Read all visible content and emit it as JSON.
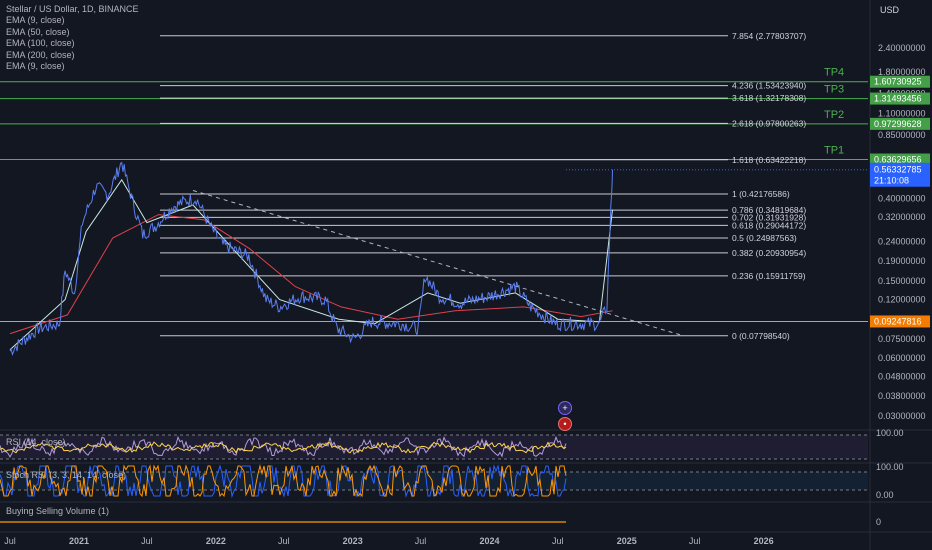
{
  "header": {
    "title": "Stellar / US Dollar, 1D, BINANCE",
    "indicators": [
      "EMA (9, close)",
      "EMA (50, close)",
      "EMA (100, close)",
      "EMA (200, close)",
      "EMA (9, close)"
    ]
  },
  "currency": "USD",
  "panes": {
    "rsi_label": "RSI (14, close)",
    "stoch_label": "Stoch RSI (3, 3, 14, 14, close)",
    "volume_label": "Buying Selling Volume (1)"
  },
  "colors": {
    "background": "#131722",
    "price_line": "#5b7ff0",
    "ema_fast": "#c9e8e0",
    "ema_slow": "#e0404a",
    "fib_line": "#e8eaf0",
    "tp_line": "#4caf50",
    "horizontal_support": "#ff9800",
    "current_price": "#2962ff"
  },
  "chart_data": {
    "type": "line",
    "title": "Stellar / US Dollar, 1D, BINANCE",
    "y_scale": "log",
    "ylim": [
      0.026,
      3.6
    ],
    "xlim": [
      "2020-07-01",
      "2026-09-15"
    ],
    "y_ticks": [
      "2.40000000",
      "1.80000000",
      "1.40000000",
      "1.10000000",
      "0.85000000",
      "0.40000000",
      "0.32000000",
      "0.24000000",
      "0.19000000",
      "0.15000000",
      "0.12000000",
      "0.07500000",
      "0.06000000",
      "0.04800000",
      "0.03800000",
      "0.03000000"
    ],
    "y_tick_values": [
      2.4,
      1.8,
      1.4,
      1.1,
      0.85,
      0.4,
      0.32,
      0.24,
      0.19,
      0.15,
      0.12,
      0.075,
      0.06,
      0.048,
      0.038,
      0.03
    ],
    "x_ticks": [
      "Jul",
      "2021",
      "Jul",
      "2022",
      "Jul",
      "2023",
      "Jul",
      "2024",
      "Jul",
      "2025",
      "Jul",
      "2026"
    ],
    "x_tick_dates": [
      "2020-07-01",
      "2021-01-01",
      "2021-07-01",
      "2022-01-01",
      "2022-07-01",
      "2023-01-01",
      "2023-07-01",
      "2024-01-01",
      "2024-07-01",
      "2025-01-01",
      "2025-07-01",
      "2026-01-01"
    ],
    "price_series": {
      "name": "XLMUSD",
      "points": [
        [
          "2020-07-01",
          0.065
        ],
        [
          "2020-09-15",
          0.085
        ],
        [
          "2020-11-10",
          0.09
        ],
        [
          "2020-11-25",
          0.17
        ],
        [
          "2020-12-20",
          0.13
        ],
        [
          "2021-01-10",
          0.3
        ],
        [
          "2021-02-15",
          0.46
        ],
        [
          "2021-03-20",
          0.42
        ],
        [
          "2021-04-25",
          0.62
        ],
        [
          "2021-05-25",
          0.38
        ],
        [
          "2021-06-20",
          0.26
        ],
        [
          "2021-07-25",
          0.29
        ],
        [
          "2021-09-05",
          0.36
        ],
        [
          "2021-10-15",
          0.39
        ],
        [
          "2021-11-10",
          0.4
        ],
        [
          "2021-12-20",
          0.28
        ],
        [
          "2022-01-20",
          0.23
        ],
        [
          "2022-03-30",
          0.2
        ],
        [
          "2022-05-15",
          0.12
        ],
        [
          "2022-06-20",
          0.11
        ],
        [
          "2022-08-15",
          0.125
        ],
        [
          "2022-10-20",
          0.12
        ],
        [
          "2022-11-20",
          0.085
        ],
        [
          "2023-01-05",
          0.075
        ],
        [
          "2023-02-20",
          0.092
        ],
        [
          "2023-05-10",
          0.09
        ],
        [
          "2023-06-25",
          0.085
        ],
        [
          "2023-07-13",
          0.16
        ],
        [
          "2023-08-20",
          0.125
        ],
        [
          "2023-10-15",
          0.115
        ],
        [
          "2024-01-01",
          0.125
        ],
        [
          "2024-03-10",
          0.14
        ],
        [
          "2024-04-20",
          0.11
        ],
        [
          "2024-06-25",
          0.09
        ],
        [
          "2024-08-20",
          0.09
        ],
        [
          "2024-10-20",
          0.09
        ],
        [
          "2024-11-09",
          0.11
        ],
        [
          "2024-11-17",
          0.27
        ],
        [
          "2024-11-22",
          0.45
        ],
        [
          "2024-11-24",
          0.5633
        ]
      ]
    },
    "ema_series": [
      {
        "name": "EMA (9, close)",
        "points": [
          [
            "2020-07-01",
            0.066
          ],
          [
            "2020-11-25",
            0.12
          ],
          [
            "2021-01-20",
            0.27
          ],
          [
            "2021-04-25",
            0.5
          ],
          [
            "2021-07-01",
            0.3
          ],
          [
            "2021-11-01",
            0.37
          ],
          [
            "2022-01-20",
            0.25
          ],
          [
            "2022-06-20",
            0.12
          ],
          [
            "2022-11-25",
            0.095
          ],
          [
            "2023-03-01",
            0.09
          ],
          [
            "2023-07-20",
            0.13
          ],
          [
            "2023-10-15",
            0.115
          ],
          [
            "2024-03-10",
            0.13
          ],
          [
            "2024-07-01",
            0.095
          ],
          [
            "2024-10-20",
            0.092
          ],
          [
            "2024-11-24",
            0.35
          ]
        ]
      },
      {
        "name": "EMA (200, close)",
        "points": [
          [
            "2020-07-01",
            0.08
          ],
          [
            "2020-12-01",
            0.1
          ],
          [
            "2021-04-01",
            0.25
          ],
          [
            "2021-08-01",
            0.33
          ],
          [
            "2021-12-01",
            0.31
          ],
          [
            "2022-04-01",
            0.22
          ],
          [
            "2022-08-01",
            0.14
          ],
          [
            "2022-12-01",
            0.11
          ],
          [
            "2023-05-01",
            0.095
          ],
          [
            "2023-10-01",
            0.105
          ],
          [
            "2024-04-01",
            0.11
          ],
          [
            "2024-09-01",
            0.098
          ],
          [
            "2024-11-24",
            0.105
          ]
        ]
      }
    ],
    "fib_levels": [
      {
        "ratio": "0",
        "value": 0.0779854,
        "label": "0 (0.07798540)"
      },
      {
        "ratio": "0.236",
        "value": 0.15911759,
        "label": "0.236 (0.15911759)"
      },
      {
        "ratio": "0.382",
        "value": 0.20930954,
        "label": "0.382 (0.20930954)"
      },
      {
        "ratio": "0.5",
        "value": 0.24987563,
        "label": "0.5 (0.24987563)"
      },
      {
        "ratio": "0.618",
        "value": 0.29044172,
        "label": "0.618 (0.29044172)"
      },
      {
        "ratio": "0.702",
        "value": 0.31931928,
        "label": "0.702 (0.31931928)"
      },
      {
        "ratio": "0.786",
        "value": 0.34819684,
        "label": "0.786 (0.34819684)"
      },
      {
        "ratio": "1",
        "value": 0.42176586,
        "label": "1 (0.42176586)"
      },
      {
        "ratio": "1.618",
        "value": 0.63422218,
        "label": "1.618 (0.63422218)"
      },
      {
        "ratio": "2.618",
        "value": 0.97800263,
        "label": "2.618 (0.97800263)"
      },
      {
        "ratio": "3.618",
        "value": 1.32178308,
        "label": "3.618 (1.32178308)"
      },
      {
        "ratio": "4.236",
        "value": 1.5342394,
        "label": "4.236 (1.53423940)"
      },
      {
        "ratio": "7.854",
        "value": 2.77803707,
        "label": "7.854 (2.77803707)"
      }
    ],
    "targets": [
      {
        "name": "TP1",
        "value": 0.63629656,
        "label": "0.63629656"
      },
      {
        "name": "TP2",
        "value": 0.97299628,
        "label": "0.97299628"
      },
      {
        "name": "TP3",
        "value": 1.31493456,
        "label": "1.31493456"
      },
      {
        "name": "TP4",
        "value": 1.60730925,
        "label": "1.60730925"
      }
    ],
    "support_line": {
      "value": 0.09247816,
      "label": "0.09247816"
    },
    "current_price": {
      "value": 0.56332785,
      "label": "0.56332785",
      "countdown": "21:10:08"
    },
    "trendline": {
      "from": [
        "2021-11-01",
        0.44
      ],
      "to": [
        "2025-06-01",
        0.078
      ]
    },
    "rsi": {
      "ticks": [
        "100.00"
      ],
      "band": [
        30,
        70
      ]
    },
    "stoch": {
      "ticks": [
        "100.00",
        "0.00"
      ],
      "band": [
        20,
        80
      ]
    },
    "volume": {
      "ticks": [
        "0"
      ]
    },
    "grid": false,
    "legend": "top-left"
  }
}
